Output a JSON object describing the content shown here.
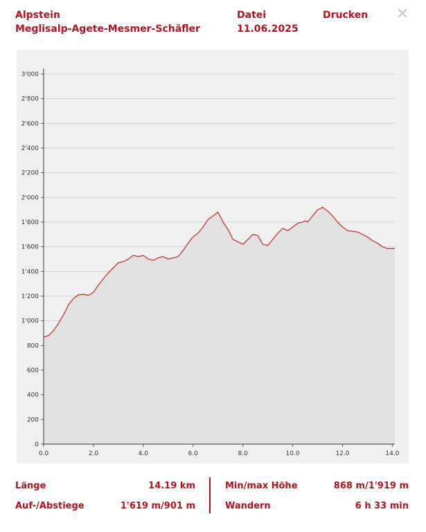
{
  "header": {
    "region": "Alpstein",
    "route": "Meglisalp-Agete-Mesmer-Schäfler",
    "file_label": "Datei",
    "date": "11.06.2025",
    "print_label": "Drucken",
    "close_icon": "close-icon"
  },
  "chart_data": {
    "type": "area",
    "xlim": [
      0,
      14.1
    ],
    "ylim": [
      0,
      3000
    ],
    "x_ticks": [
      "0.0",
      "2.0",
      "4.0",
      "6.0",
      "8.0",
      "10.0",
      "12.0",
      "14.0"
    ],
    "x_tick_values": [
      0,
      2,
      4,
      6,
      8,
      10,
      12,
      14
    ],
    "y_ticks": [
      "0",
      "200",
      "400",
      "600",
      "800",
      "1'000",
      "1'200",
      "1'400",
      "1'600",
      "1'800",
      "2'000",
      "2'200",
      "2'400",
      "2'600",
      "2'800",
      "3'000"
    ],
    "y_tick_values": [
      0,
      200,
      400,
      600,
      800,
      1000,
      1200,
      1400,
      1600,
      1800,
      2000,
      2200,
      2400,
      2600,
      2800,
      3000
    ],
    "grid": true,
    "line_color": "#c0392b",
    "fill_color": "#e2e2e2",
    "series": [
      {
        "x": [
          0,
          0.2,
          0.4,
          0.6,
          0.8,
          1.0,
          1.2,
          1.4,
          1.6,
          1.8,
          2.0,
          2.2,
          2.4,
          2.6,
          2.8,
          3.0,
          3.2,
          3.4,
          3.6,
          3.8,
          3.9,
          4.0,
          4.2,
          4.4,
          4.6,
          4.8,
          5.0,
          5.2,
          5.4,
          5.6,
          5.8,
          6.0,
          6.2,
          6.4,
          6.6,
          6.8,
          7.0,
          7.2,
          7.4,
          7.5,
          7.6,
          7.8,
          8.0,
          8.2,
          8.4,
          8.6,
          8.8,
          9.0,
          9.2,
          9.4,
          9.6,
          9.8,
          10.0,
          10.2,
          10.4,
          10.5,
          10.6,
          10.8,
          11.0,
          11.2,
          11.4,
          11.6,
          11.8,
          12.0,
          12.2,
          12.4,
          12.6,
          12.8,
          13.0,
          13.2,
          13.4,
          13.6,
          13.8,
          14.0,
          14.1
        ],
        "y": [
          868,
          880,
          920,
          980,
          1050,
          1130,
          1180,
          1210,
          1215,
          1205,
          1230,
          1290,
          1340,
          1390,
          1430,
          1470,
          1480,
          1500,
          1530,
          1520,
          1525,
          1530,
          1500,
          1490,
          1510,
          1520,
          1500,
          1510,
          1520,
          1570,
          1630,
          1680,
          1710,
          1760,
          1820,
          1850,
          1880,
          1800,
          1740,
          1700,
          1660,
          1640,
          1620,
          1660,
          1700,
          1690,
          1620,
          1610,
          1660,
          1710,
          1750,
          1730,
          1760,
          1790,
          1800,
          1810,
          1800,
          1850,
          1900,
          1919,
          1890,
          1850,
          1800,
          1760,
          1730,
          1725,
          1720,
          1700,
          1680,
          1650,
          1630,
          1600,
          1585,
          1585,
          1585
        ]
      }
    ]
  },
  "stats": {
    "length_label": "Länge",
    "length_value": "14.19 km",
    "ascent_label": "Auf-/Abstiege",
    "ascent_value": "1'619 m/901 m",
    "minmax_label": "Min/max Höhe",
    "minmax_value": "868 m/1'919 m",
    "activity_label": "Wandern",
    "activity_value": "6 h 33 min"
  }
}
